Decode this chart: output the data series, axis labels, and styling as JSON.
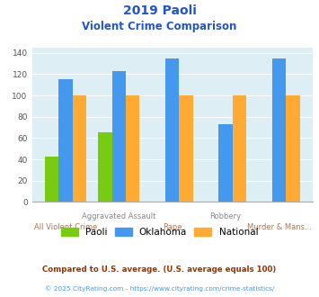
{
  "title_line1": "2019 Paoli",
  "title_line2": "Violent Crime Comparison",
  "categories_top": [
    "Aggravated Assault",
    "Rape",
    "Robbery",
    "Murder & Mans..."
  ],
  "categories_bot": [
    "All Violent Crime",
    "",
    "",
    ""
  ],
  "paoli": [
    43,
    65,
    0,
    0,
    0
  ],
  "oklahoma": [
    115,
    123,
    135,
    73,
    135
  ],
  "national": [
    100,
    100,
    100,
    100,
    100
  ],
  "paoli_color": "#77cc11",
  "oklahoma_color": "#4499ee",
  "national_color": "#ffaa33",
  "ylim": [
    0,
    145
  ],
  "yticks": [
    0,
    20,
    40,
    60,
    80,
    100,
    120,
    140
  ],
  "bg_color": "#ddeef5",
  "title_color": "#2255cc",
  "xlabel_color_top": "#888888",
  "xlabel_color_bot": "#aa7755",
  "footnote1": "Compared to U.S. average. (U.S. average equals 100)",
  "footnote2": "© 2025 CityRating.com - https://www.cityrating.com/crime-statistics/",
  "footnote1_color": "#993300",
  "footnote2_color": "#4499ee",
  "legend_labels": [
    "Paoli",
    "Oklahoma",
    "National"
  ]
}
